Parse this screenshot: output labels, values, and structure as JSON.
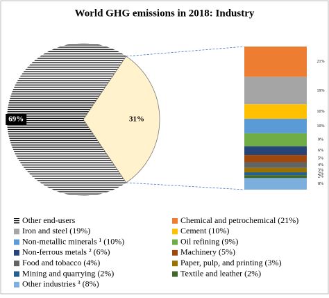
{
  "chart_data": [
    {
      "type": "pie",
      "title": "World GHG emissions in 2018: Industry",
      "categories": [
        "Other end-users",
        null
      ],
      "values": [
        69,
        31
      ],
      "value_labels": [
        "69%",
        "31%"
      ],
      "colors": [
        "hatch",
        "#fff2cc"
      ]
    },
    {
      "type": "bar",
      "stacked": true,
      "series": [
        {
          "name": "Chemical and petrochemical (21%)",
          "color": "#ed7d31",
          "values": [
            21
          ],
          "value_labels": [
            "21%"
          ]
        },
        {
          "name": "Iron and steel (19%)",
          "color": "#a5a5a5",
          "values": [
            19
          ],
          "value_labels": [
            "19%"
          ]
        },
        {
          "name": "Cement (10%)",
          "color": "#ffc000",
          "values": [
            10
          ],
          "value_labels": [
            "10%"
          ]
        },
        {
          "name": "Non-metallic minerals ¹ (10%)",
          "color": "#5b9bd5",
          "values": [
            10
          ],
          "value_labels": [
            "10%"
          ]
        },
        {
          "name": "Oil refining (9%)",
          "color": "#70ad47",
          "values": [
            9
          ],
          "value_labels": [
            "9%"
          ]
        },
        {
          "name": "Non-ferrous metals ² (6%)",
          "color": "#264478",
          "values": [
            6
          ],
          "value_labels": [
            "6%"
          ]
        },
        {
          "name": "Machinery (5%)",
          "color": "#9e480e",
          "values": [
            5
          ],
          "value_labels": [
            "5%"
          ]
        },
        {
          "name": "Food and tobacco (4%)",
          "color": "#636363",
          "values": [
            4
          ],
          "value_labels": [
            "4%"
          ]
        },
        {
          "name": "Paper, pulp, and printing (3%)",
          "color": "#997300",
          "values": [
            3
          ],
          "value_labels": [
            "3%"
          ]
        },
        {
          "name": "Mining and quarrying (2%)",
          "color": "#255e91",
          "values": [
            2
          ],
          "value_labels": [
            "2%"
          ]
        },
        {
          "name": "Textile and leather (2%)",
          "color": "#43682b",
          "values": [
            2
          ],
          "value_labels": [
            "2%"
          ]
        },
        {
          "name": "Other industries ³ (8%)",
          "color": "#7cafdd",
          "values": [
            8
          ],
          "value_labels": [
            "8%"
          ]
        }
      ]
    }
  ]
}
